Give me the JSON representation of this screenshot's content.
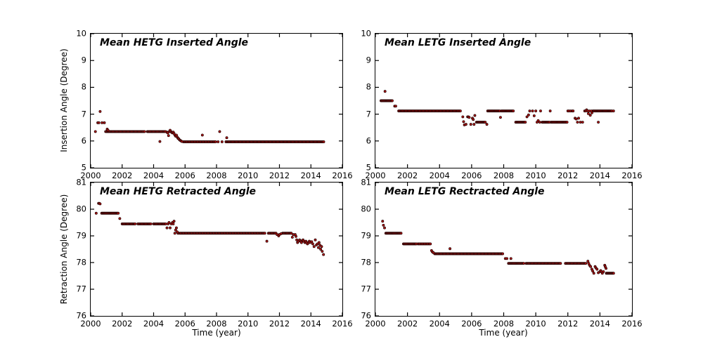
{
  "figure": {
    "background": "#ffffff",
    "frame_color": "#000000",
    "marker_color": "#ad1515",
    "marker_edge_color": "#200000",
    "ylabel_top": "Insertion Angle (Degree)",
    "ylabel_bottom": "Retraction Angle (Degree)",
    "xlabel_bottom_left": "Time (year)",
    "xlabel_bottom_right": "Time (year)"
  },
  "chart_data": [
    {
      "type": "scatter",
      "title": "Mean HETG Inserted Angle",
      "xlabel": "",
      "ylabel": "Insertion Angle (Degree)",
      "xlim": [
        2000,
        2016
      ],
      "ylim": [
        5,
        10
      ],
      "xticks": [
        2000,
        2002,
        2004,
        2006,
        2008,
        2010,
        2012,
        2014,
        2016
      ],
      "yticks": [
        5,
        6,
        7,
        8,
        9,
        10
      ],
      "grid": false,
      "legend": null,
      "marker_color": "#ad1515",
      "runs": [
        {
          "x0": 2000.95,
          "x1": 2003.45,
          "step": 0.055,
          "y": 6.35
        },
        {
          "x0": 2003.6,
          "x1": 2004.78,
          "step": 0.055,
          "y": 6.35
        },
        {
          "x0": 2005.9,
          "x1": 2007.95,
          "step": 0.06,
          "y": 5.97
        },
        {
          "x0": 2008.6,
          "x1": 2014.85,
          "step": 0.055,
          "y": 5.97
        }
      ],
      "points": [
        [
          2000.3,
          6.35
        ],
        [
          2000.45,
          6.68
        ],
        [
          2000.52,
          6.68
        ],
        [
          2000.6,
          7.1
        ],
        [
          2000.72,
          6.68
        ],
        [
          2000.87,
          6.68
        ],
        [
          2001.05,
          6.44
        ],
        [
          2001.1,
          6.4
        ],
        [
          2004.4,
          5.98
        ],
        [
          2004.85,
          6.33
        ],
        [
          2004.9,
          6.3
        ],
        [
          2004.95,
          6.2
        ],
        [
          2005.0,
          6.35
        ],
        [
          2005.05,
          6.4
        ],
        [
          2005.1,
          6.35
        ],
        [
          2005.15,
          6.32
        ],
        [
          2005.2,
          6.3
        ],
        [
          2005.25,
          6.33
        ],
        [
          2005.3,
          6.28
        ],
        [
          2005.35,
          6.22
        ],
        [
          2005.4,
          6.18
        ],
        [
          2005.45,
          6.22
        ],
        [
          2005.5,
          6.15
        ],
        [
          2005.55,
          6.1
        ],
        [
          2005.6,
          6.08
        ],
        [
          2005.65,
          6.04
        ],
        [
          2005.7,
          6.02
        ],
        [
          2005.75,
          6.0
        ],
        [
          2005.8,
          5.98
        ],
        [
          2007.1,
          6.22
        ],
        [
          2008.1,
          5.97
        ],
        [
          2008.2,
          6.35
        ],
        [
          2008.35,
          5.97
        ],
        [
          2008.65,
          6.12
        ]
      ]
    },
    {
      "type": "scatter",
      "title": "Mean LETG Inserted Angle",
      "xlabel": "",
      "ylabel": "",
      "xlim": [
        2000,
        2016
      ],
      "ylim": [
        5,
        10
      ],
      "xticks": [
        2000,
        2002,
        2004,
        2006,
        2008,
        2010,
        2012,
        2014,
        2016
      ],
      "yticks": [
        5,
        6,
        7,
        8,
        9,
        10
      ],
      "grid": false,
      "legend": null,
      "marker_color": "#ad1515",
      "runs": [
        {
          "x0": 2000.35,
          "x1": 2001.05,
          "step": 0.05,
          "y": 7.5
        },
        {
          "x0": 2001.45,
          "x1": 2005.35,
          "step": 0.055,
          "y": 7.12
        },
        {
          "x0": 2006.3,
          "x1": 2006.85,
          "step": 0.05,
          "y": 6.7
        },
        {
          "x0": 2007.0,
          "x1": 2007.75,
          "step": 0.05,
          "y": 7.12
        },
        {
          "x0": 2007.85,
          "x1": 2008.6,
          "step": 0.05,
          "y": 7.12
        },
        {
          "x0": 2008.75,
          "x1": 2009.35,
          "step": 0.05,
          "y": 6.7
        },
        {
          "x0": 2010.4,
          "x1": 2010.85,
          "step": 0.05,
          "y": 6.7
        },
        {
          "x0": 2010.95,
          "x1": 2011.95,
          "step": 0.05,
          "y": 6.7
        },
        {
          "x0": 2013.55,
          "x1": 2014.75,
          "step": 0.05,
          "y": 7.12
        }
      ],
      "points": [
        [
          2000.6,
          7.85
        ],
        [
          2001.2,
          7.3
        ],
        [
          2001.27,
          7.3
        ],
        [
          2005.45,
          6.9
        ],
        [
          2005.5,
          6.72
        ],
        [
          2005.55,
          6.6
        ],
        [
          2005.65,
          6.62
        ],
        [
          2005.75,
          6.9
        ],
        [
          2005.8,
          6.9
        ],
        [
          2005.85,
          6.88
        ],
        [
          2005.95,
          6.62
        ],
        [
          2006.05,
          6.85
        ],
        [
          2006.1,
          6.8
        ],
        [
          2006.15,
          6.62
        ],
        [
          2006.2,
          6.95
        ],
        [
          2006.95,
          6.62
        ],
        [
          2007.8,
          6.88
        ],
        [
          2009.45,
          6.9
        ],
        [
          2009.55,
          6.97
        ],
        [
          2009.62,
          7.12
        ],
        [
          2009.8,
          7.12
        ],
        [
          2009.9,
          6.94
        ],
        [
          2010.0,
          7.12
        ],
        [
          2010.08,
          6.7
        ],
        [
          2010.15,
          6.76
        ],
        [
          2010.25,
          6.7
        ],
        [
          2010.3,
          7.12
        ],
        [
          2010.9,
          7.12
        ],
        [
          2012.0,
          7.12
        ],
        [
          2012.08,
          7.12
        ],
        [
          2012.18,
          7.12
        ],
        [
          2012.28,
          7.12
        ],
        [
          2012.33,
          7.12
        ],
        [
          2012.45,
          6.85
        ],
        [
          2012.52,
          6.82
        ],
        [
          2012.6,
          6.7
        ],
        [
          2012.67,
          6.85
        ],
        [
          2012.78,
          6.7
        ],
        [
          2012.92,
          6.7
        ],
        [
          2013.05,
          7.12
        ],
        [
          2013.1,
          7.12
        ],
        [
          2013.17,
          7.16
        ],
        [
          2013.22,
          7.12
        ],
        [
          2013.28,
          7.02
        ],
        [
          2013.33,
          7.12
        ],
        [
          2013.4,
          6.96
        ],
        [
          2013.45,
          7.12
        ],
        [
          2013.5,
          7.05
        ],
        [
          2013.9,
          6.7
        ],
        [
          2014.85,
          7.12
        ]
      ]
    },
    {
      "type": "scatter",
      "title": "Mean HETG Retracted Angle",
      "xlabel": "Time (year)",
      "ylabel": "Retraction Angle (Degree)",
      "xlim": [
        2000,
        2016
      ],
      "ylim": [
        76,
        81
      ],
      "xticks": [
        2000,
        2002,
        2004,
        2006,
        2008,
        2010,
        2012,
        2014,
        2016
      ],
      "yticks": [
        76,
        77,
        78,
        79,
        80,
        81
      ],
      "grid": false,
      "legend": null,
      "marker_color": "#ad1515",
      "runs": [
        {
          "x0": 2000.7,
          "x1": 2001.78,
          "step": 0.05,
          "y": 79.85
        },
        {
          "x0": 2002.0,
          "x1": 2002.85,
          "step": 0.055,
          "y": 79.45
        },
        {
          "x0": 2003.0,
          "x1": 2003.85,
          "step": 0.055,
          "y": 79.45
        },
        {
          "x0": 2004.0,
          "x1": 2004.78,
          "step": 0.055,
          "y": 79.45
        },
        {
          "x0": 2005.55,
          "x1": 2011.1,
          "step": 0.06,
          "y": 79.1
        },
        {
          "x0": 2011.3,
          "x1": 2011.8,
          "step": 0.06,
          "y": 79.1
        },
        {
          "x0": 2012.2,
          "x1": 2012.78,
          "step": 0.055,
          "y": 79.1
        }
      ],
      "points": [
        [
          2000.35,
          79.85
        ],
        [
          2000.5,
          80.22
        ],
        [
          2000.55,
          80.22
        ],
        [
          2000.6,
          80.2
        ],
        [
          2001.85,
          79.65
        ],
        [
          2004.85,
          79.3
        ],
        [
          2004.92,
          79.45
        ],
        [
          2004.98,
          79.5
        ],
        [
          2005.05,
          79.3
        ],
        [
          2005.12,
          79.45
        ],
        [
          2005.2,
          79.5
        ],
        [
          2005.25,
          79.45
        ],
        [
          2005.3,
          79.55
        ],
        [
          2005.35,
          79.1
        ],
        [
          2005.4,
          79.22
        ],
        [
          2005.45,
          79.3
        ],
        [
          2005.5,
          79.15
        ],
        [
          2011.2,
          78.8
        ],
        [
          2011.85,
          79.05
        ],
        [
          2011.95,
          79.0
        ],
        [
          2012.0,
          79.05
        ],
        [
          2012.1,
          79.08
        ],
        [
          2012.82,
          78.95
        ],
        [
          2012.88,
          79.05
        ],
        [
          2013.0,
          79.05
        ],
        [
          2013.05,
          78.98
        ],
        [
          2013.1,
          78.85
        ],
        [
          2013.15,
          78.75
        ],
        [
          2013.2,
          78.8
        ],
        [
          2013.28,
          78.85
        ],
        [
          2013.35,
          78.8
        ],
        [
          2013.4,
          78.75
        ],
        [
          2013.45,
          78.82
        ],
        [
          2013.5,
          78.85
        ],
        [
          2013.55,
          78.8
        ],
        [
          2013.62,
          78.75
        ],
        [
          2013.68,
          78.8
        ],
        [
          2013.73,
          78.75
        ],
        [
          2013.78,
          78.7
        ],
        [
          2013.85,
          78.75
        ],
        [
          2013.9,
          78.8
        ],
        [
          2013.95,
          78.75
        ],
        [
          2014.05,
          78.78
        ],
        [
          2014.12,
          78.7
        ],
        [
          2014.2,
          78.6
        ],
        [
          2014.28,
          78.85
        ],
        [
          2014.35,
          78.66
        ],
        [
          2014.42,
          78.7
        ],
        [
          2014.48,
          78.56
        ],
        [
          2014.52,
          78.75
        ],
        [
          2014.58,
          78.65
        ],
        [
          2014.62,
          78.5
        ],
        [
          2014.68,
          78.6
        ],
        [
          2014.72,
          78.42
        ],
        [
          2014.8,
          78.3
        ]
      ]
    },
    {
      "type": "scatter",
      "title": "Mean LETG Rectracted Angle",
      "xlabel": "Time (year)",
      "ylabel": "",
      "xlim": [
        2000,
        2016
      ],
      "ylim": [
        76,
        81
      ],
      "xticks": [
        2000,
        2002,
        2004,
        2006,
        2008,
        2010,
        2012,
        2014,
        2016
      ],
      "yticks": [
        76,
        77,
        78,
        79,
        80,
        81
      ],
      "grid": false,
      "legend": null,
      "marker_color": "#ad1515",
      "runs": [
        {
          "x0": 2000.65,
          "x1": 2001.6,
          "step": 0.05,
          "y": 79.1
        },
        {
          "x0": 2001.75,
          "x1": 2002.55,
          "step": 0.05,
          "y": 78.7
        },
        {
          "x0": 2002.65,
          "x1": 2003.45,
          "step": 0.06,
          "y": 78.7
        },
        {
          "x0": 2003.7,
          "x1": 2007.95,
          "step": 0.055,
          "y": 78.33
        },
        {
          "x0": 2008.3,
          "x1": 2009.25,
          "step": 0.05,
          "y": 77.97
        },
        {
          "x0": 2009.4,
          "x1": 2011.55,
          "step": 0.055,
          "y": 77.97
        },
        {
          "x0": 2011.85,
          "x1": 2013.15,
          "step": 0.055,
          "y": 77.97
        },
        {
          "x0": 2014.4,
          "x1": 2014.85,
          "step": 0.045,
          "y": 77.6
        }
      ],
      "points": [
        [
          2000.45,
          79.55
        ],
        [
          2000.5,
          79.4
        ],
        [
          2000.57,
          79.3
        ],
        [
          2003.5,
          78.45
        ],
        [
          2003.55,
          78.4
        ],
        [
          2003.62,
          78.37
        ],
        [
          2004.65,
          78.52
        ],
        [
          2008.1,
          78.15
        ],
        [
          2008.2,
          78.15
        ],
        [
          2008.45,
          78.15
        ],
        [
          2013.25,
          78.05
        ],
        [
          2013.3,
          77.97
        ],
        [
          2013.35,
          77.9
        ],
        [
          2013.42,
          77.85
        ],
        [
          2013.5,
          77.75
        ],
        [
          2013.55,
          77.68
        ],
        [
          2013.62,
          77.6
        ],
        [
          2013.7,
          77.85
        ],
        [
          2013.75,
          77.8
        ],
        [
          2013.82,
          77.75
        ],
        [
          2013.9,
          77.62
        ],
        [
          2014.0,
          77.66
        ],
        [
          2014.05,
          77.7
        ],
        [
          2014.1,
          77.65
        ],
        [
          2014.15,
          77.6
        ],
        [
          2014.22,
          77.66
        ],
        [
          2014.3,
          77.9
        ],
        [
          2014.33,
          77.85
        ],
        [
          2014.38,
          77.78
        ]
      ]
    }
  ]
}
